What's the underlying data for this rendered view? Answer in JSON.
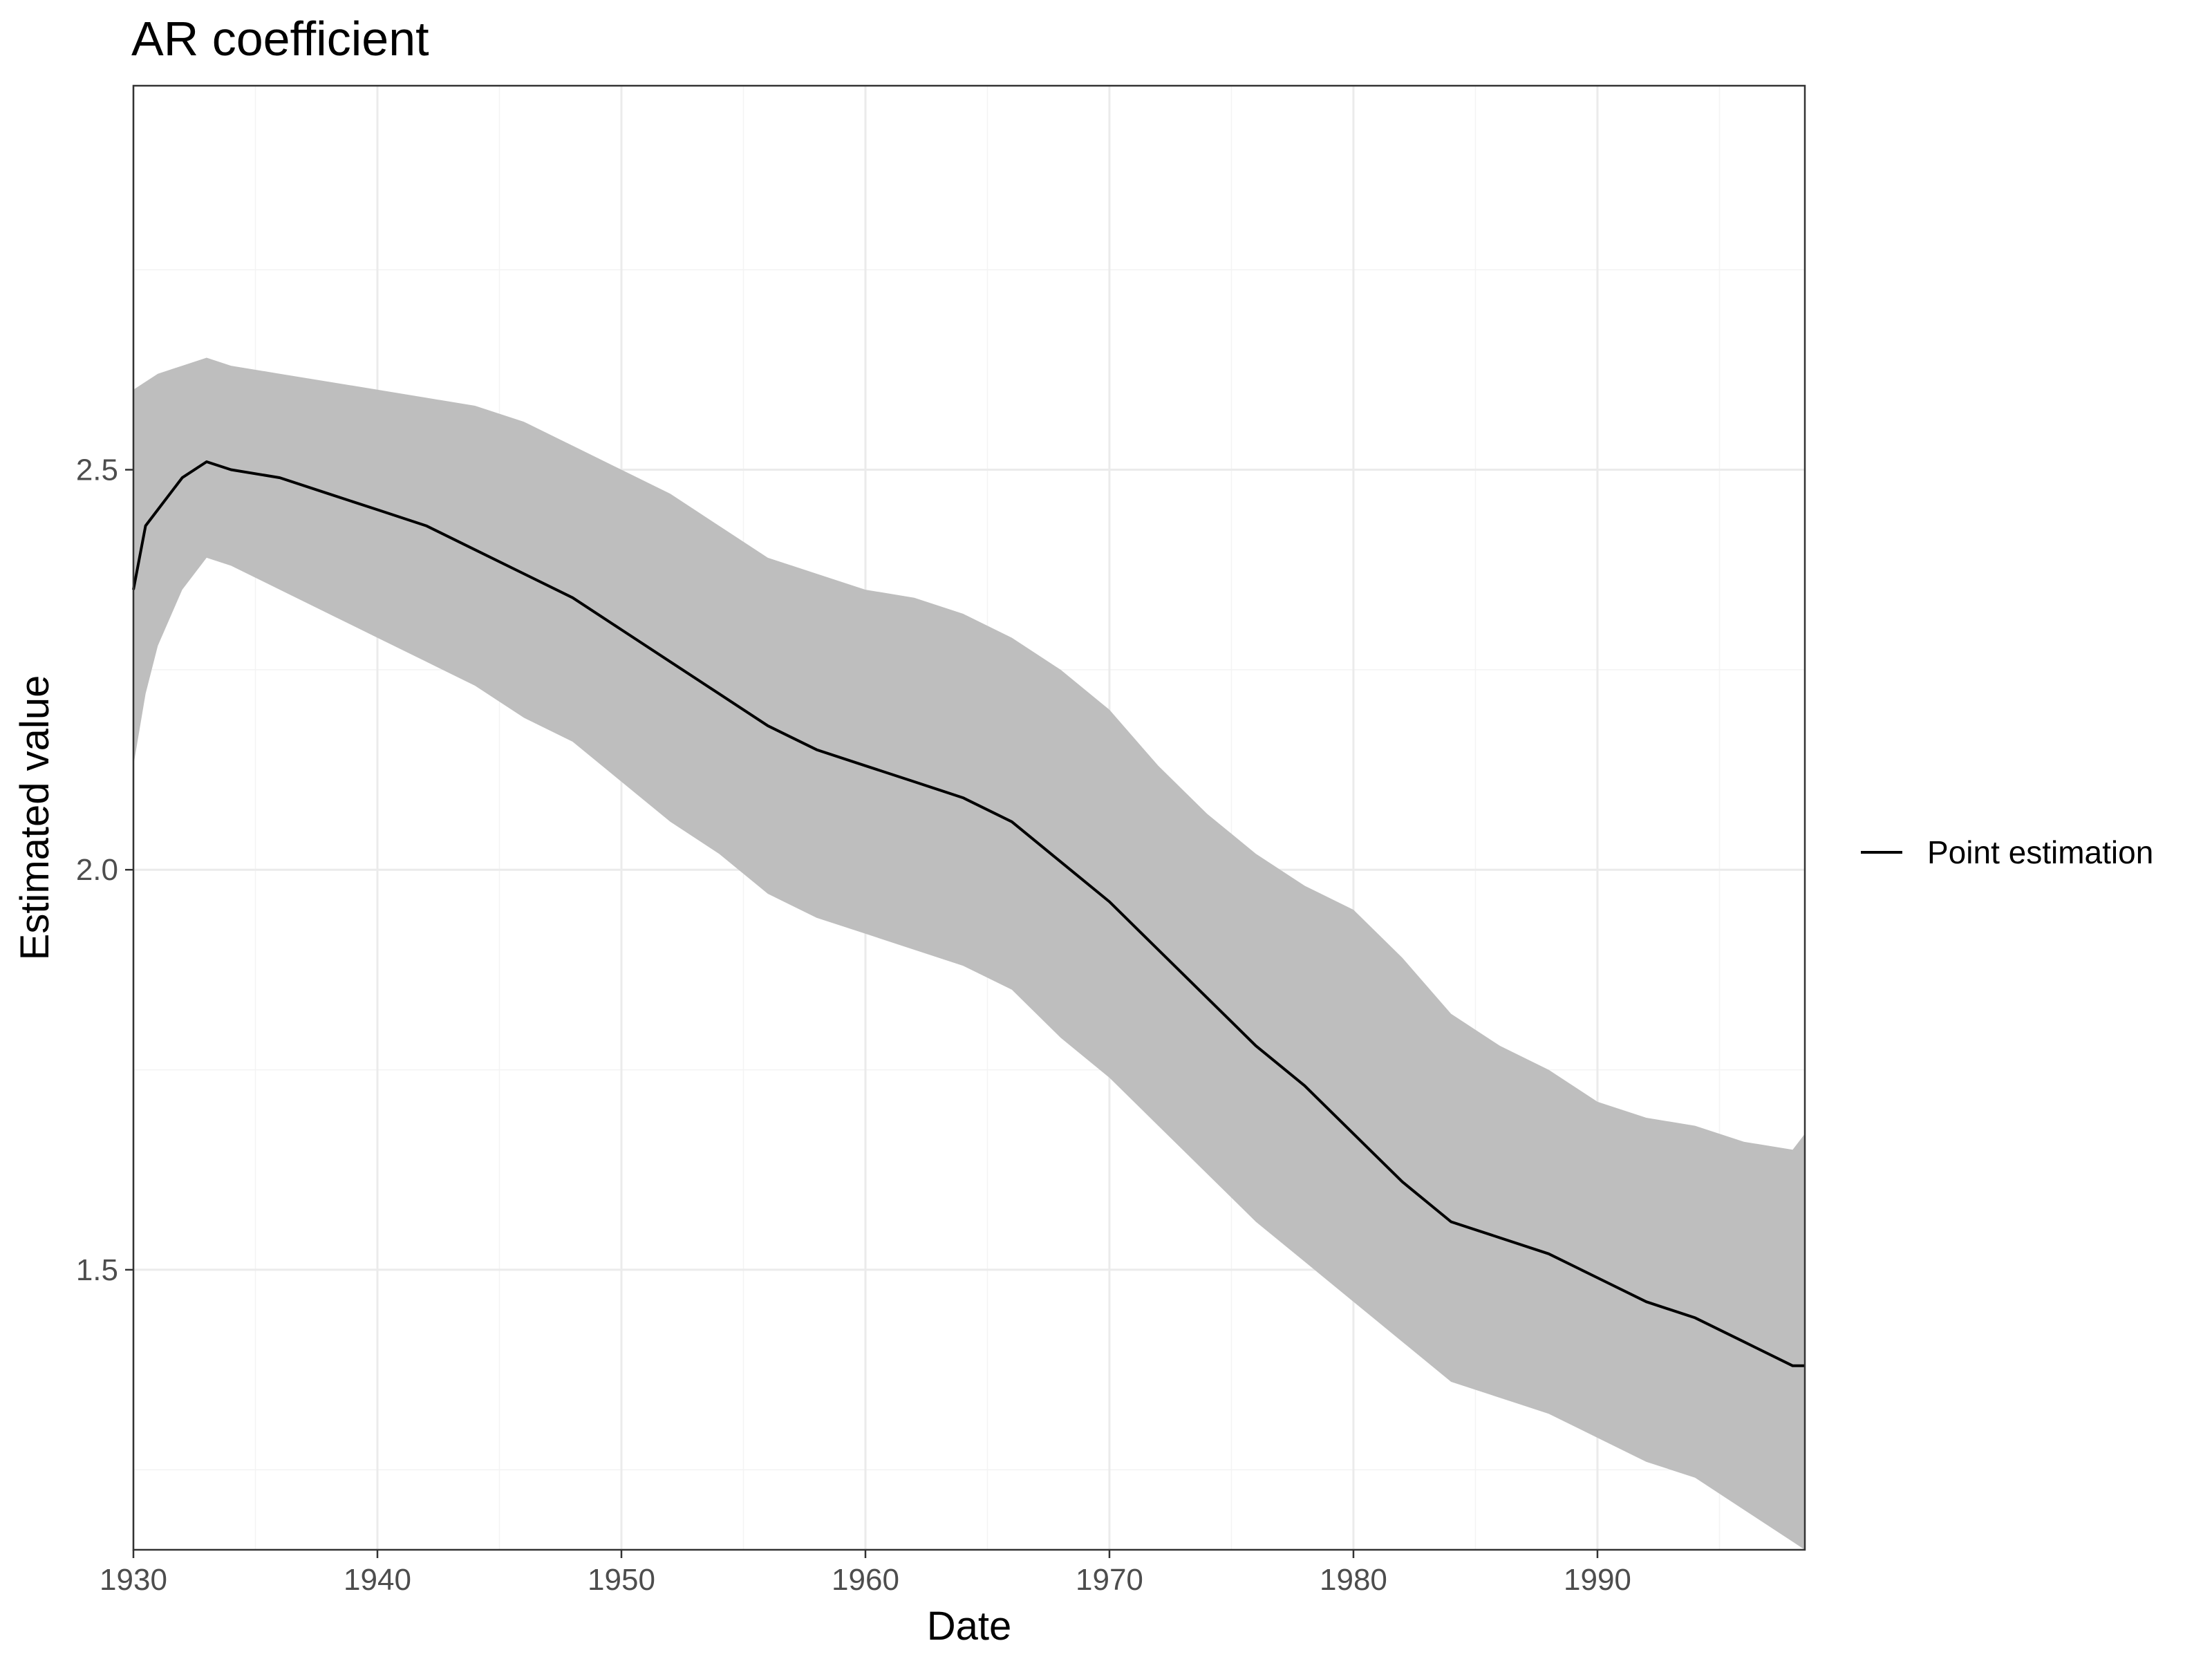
{
  "chart_data": {
    "type": "line",
    "title": "AR coefficient",
    "xlabel": "Date",
    "ylabel": "Estimated value",
    "xlim": [
      1930,
      1998.5
    ],
    "ylim": [
      1.15,
      2.98
    ],
    "x_ticks": [
      1930,
      1940,
      1950,
      1960,
      1970,
      1980,
      1990
    ],
    "x_tick_labels": [
      "1930",
      "1940",
      "1950",
      "1960",
      "1970",
      "1980",
      "1990"
    ],
    "y_ticks": [
      1.5,
      2.0,
      2.5
    ],
    "y_tick_labels": [
      "1.5",
      "2.0",
      "2.5"
    ],
    "grid": true,
    "legend_position": "right",
    "series": [
      {
        "name": "Point estimation",
        "color": "#000000",
        "x": [
          1930,
          1930.5,
          1931,
          1932,
          1933,
          1934,
          1936,
          1938,
          1940,
          1942,
          1944,
          1946,
          1948,
          1950,
          1952,
          1954,
          1956,
          1958,
          1960,
          1962,
          1964,
          1966,
          1968,
          1970,
          1972,
          1974,
          1976,
          1978,
          1980,
          1982,
          1984,
          1986,
          1988,
          1990,
          1992,
          1994,
          1996,
          1998,
          1998.5
        ],
        "y": [
          2.35,
          2.43,
          2.45,
          2.49,
          2.51,
          2.5,
          2.49,
          2.47,
          2.45,
          2.43,
          2.4,
          2.37,
          2.34,
          2.3,
          2.26,
          2.22,
          2.18,
          2.15,
          2.13,
          2.11,
          2.09,
          2.06,
          2.01,
          1.96,
          1.9,
          1.84,
          1.78,
          1.73,
          1.67,
          1.61,
          1.56,
          1.54,
          1.52,
          1.49,
          1.46,
          1.44,
          1.41,
          1.38,
          1.38
        ]
      }
    ],
    "band": {
      "color": "#bebebe",
      "x": [
        1930,
        1930.5,
        1931,
        1932,
        1933,
        1934,
        1936,
        1938,
        1940,
        1942,
        1944,
        1946,
        1948,
        1950,
        1952,
        1954,
        1956,
        1958,
        1960,
        1962,
        1964,
        1966,
        1968,
        1970,
        1972,
        1974,
        1976,
        1978,
        1980,
        1982,
        1984,
        1986,
        1988,
        1990,
        1992,
        1994,
        1996,
        1998,
        1998.5
      ],
      "lower": [
        2.13,
        2.22,
        2.28,
        2.35,
        2.39,
        2.38,
        2.35,
        2.32,
        2.29,
        2.26,
        2.23,
        2.19,
        2.16,
        2.11,
        2.06,
        2.02,
        1.97,
        1.94,
        1.92,
        1.9,
        1.88,
        1.85,
        1.79,
        1.74,
        1.68,
        1.62,
        1.56,
        1.51,
        1.46,
        1.41,
        1.36,
        1.34,
        1.32,
        1.29,
        1.26,
        1.24,
        1.2,
        1.16,
        1.15
      ],
      "upper": [
        2.6,
        2.61,
        2.62,
        2.63,
        2.64,
        2.63,
        2.62,
        2.61,
        2.6,
        2.59,
        2.58,
        2.56,
        2.53,
        2.5,
        2.47,
        2.43,
        2.39,
        2.37,
        2.35,
        2.34,
        2.32,
        2.29,
        2.25,
        2.2,
        2.13,
        2.07,
        2.02,
        1.98,
        1.95,
        1.89,
        1.82,
        1.78,
        1.75,
        1.71,
        1.69,
        1.68,
        1.66,
        1.65,
        1.67
      ]
    }
  }
}
